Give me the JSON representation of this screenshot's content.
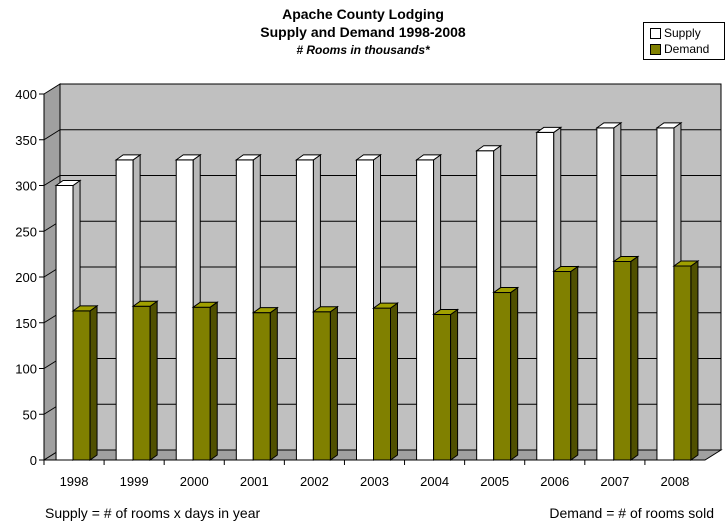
{
  "chart_data": {
    "type": "bar",
    "title": "Apache County Lodging",
    "subtitle": "Supply and Demand 1998-2008",
    "subtitle2": "# Rooms in thousands*",
    "categories": [
      "1998",
      "1999",
      "2000",
      "2001",
      "2002",
      "2003",
      "2004",
      "2005",
      "2006",
      "2007",
      "2008"
    ],
    "series": [
      {
        "name": "Supply",
        "values": [
          300,
          328,
          328,
          328,
          328,
          328,
          328,
          338,
          358,
          363,
          363
        ]
      },
      {
        "name": "Demand",
        "values": [
          163,
          168,
          167,
          161,
          162,
          166,
          159,
          183,
          206,
          217,
          212
        ]
      }
    ],
    "ylim": [
      0,
      400
    ],
    "yticks": [
      0,
      50,
      100,
      150,
      200,
      250,
      300,
      350,
      400
    ],
    "grid": true,
    "legend": "top-right",
    "colors": {
      "supply": "#ffffff",
      "demand": "#808000",
      "wall": "#c0c0c0"
    }
  },
  "footnotes": {
    "left": "Supply = # of rooms x days in year",
    "right": "Demand = # of rooms sold"
  }
}
